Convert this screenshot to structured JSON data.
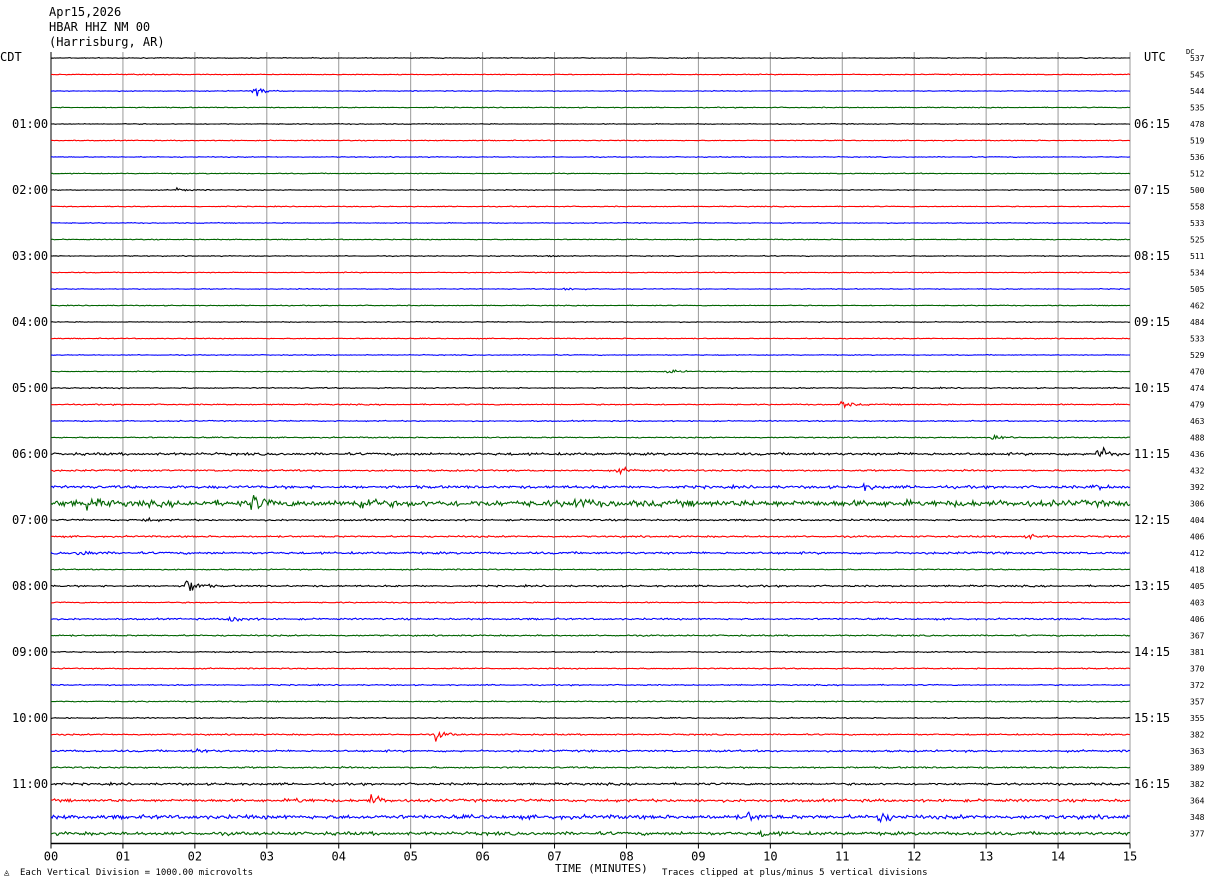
{
  "header": {
    "date": "Apr15,2026",
    "station": "HBAR HHZ NM 00",
    "location": "(Harrisburg, AR)"
  },
  "labels": {
    "left_timezone": "CDT",
    "right_timezone": "UTC",
    "dc_header": "DC",
    "x_axis_title": "TIME (MINUTES)",
    "scale_note": "Each Vertical Division = 1000.00 microvolts",
    "clip_note": "Traces clipped at plus/minus 5 vertical divisions"
  },
  "chart_data": {
    "type": "line",
    "title": "HBAR HHZ NM 00",
    "xlabel": "TIME (MINUTES)",
    "xlim": [
      0,
      15
    ],
    "x_ticks": [
      "00",
      "01",
      "02",
      "03",
      "04",
      "05",
      "06",
      "07",
      "08",
      "09",
      "10",
      "11",
      "12",
      "13",
      "14",
      "15"
    ],
    "row_interval_minutes": 15,
    "trace_colors": [
      "#000000",
      "#ff0000",
      "#0000ff",
      "#006400"
    ],
    "cdt_labels": [
      "01:00",
      "02:00",
      "03:00",
      "04:00",
      "05:00",
      "06:00",
      "07:00",
      "08:00",
      "09:00",
      "10:00",
      "11:00"
    ],
    "utc_labels": [
      "06:15",
      "07:15",
      "08:15",
      "09:15",
      "10:15",
      "11:15",
      "12:15",
      "13:15",
      "14:15",
      "15:15",
      "16:15"
    ],
    "hour_label_rows": [
      4,
      8,
      12,
      16,
      20,
      24,
      28,
      32,
      36,
      40,
      44
    ],
    "dc_offsets": [
      537,
      545,
      544,
      535,
      478,
      519,
      536,
      512,
      500,
      558,
      533,
      525,
      511,
      534,
      505,
      462,
      484,
      533,
      529,
      470,
      474,
      479,
      463,
      488,
      436,
      432,
      392,
      306,
      404,
      406,
      412,
      418,
      405,
      403,
      406,
      367,
      381,
      370,
      372,
      357,
      355,
      382,
      363,
      389,
      382,
      364,
      348,
      377
    ],
    "noise_level": [
      0.15,
      0.15,
      0.15,
      0.15,
      0.15,
      0.15,
      0.15,
      0.15,
      0.15,
      0.15,
      0.15,
      0.15,
      0.15,
      0.15,
      0.15,
      0.15,
      0.15,
      0.15,
      0.15,
      0.15,
      0.2,
      0.2,
      0.2,
      0.2,
      0.45,
      0.3,
      0.5,
      1.1,
      0.3,
      0.3,
      0.4,
      0.2,
      0.3,
      0.2,
      0.3,
      0.25,
      0.2,
      0.2,
      0.2,
      0.2,
      0.2,
      0.25,
      0.35,
      0.3,
      0.4,
      0.5,
      0.7,
      0.6
    ],
    "events": [
      {
        "row": 2,
        "minute": 2.8,
        "amplitude": 2.2
      },
      {
        "row": 8,
        "minute": 1.75,
        "amplitude": 0.8
      },
      {
        "row": 12,
        "minute": 6.9,
        "amplitude": 0.6
      },
      {
        "row": 14,
        "minute": 7.15,
        "amplitude": 0.9
      },
      {
        "row": 19,
        "minute": 8.6,
        "amplitude": 1.0
      },
      {
        "row": 21,
        "minute": 11.0,
        "amplitude": 1.3
      },
      {
        "row": 23,
        "minute": 13.1,
        "amplitude": 1.2
      },
      {
        "row": 24,
        "minute": 14.55,
        "amplitude": 3.5
      },
      {
        "row": 25,
        "minute": 7.9,
        "amplitude": 1.2
      },
      {
        "row": 26,
        "minute": 11.3,
        "amplitude": 1.0
      },
      {
        "row": 26,
        "minute": 14.5,
        "amplitude": 1.0
      },
      {
        "row": 27,
        "minute": 0.5,
        "amplitude": 2.0
      },
      {
        "row": 27,
        "minute": 2.8,
        "amplitude": 3.0
      },
      {
        "row": 27,
        "minute": 4.3,
        "amplitude": 3.5
      },
      {
        "row": 27,
        "minute": 7.3,
        "amplitude": 2.0
      },
      {
        "row": 28,
        "minute": 1.3,
        "amplitude": 0.9
      },
      {
        "row": 29,
        "minute": 13.55,
        "amplitude": 1.2
      },
      {
        "row": 30,
        "minute": 0.4,
        "amplitude": 1.5
      },
      {
        "row": 32,
        "minute": 1.9,
        "amplitude": 3.8
      },
      {
        "row": 34,
        "minute": 2.5,
        "amplitude": 1.8
      },
      {
        "row": 41,
        "minute": 5.35,
        "amplitude": 1.8
      },
      {
        "row": 42,
        "minute": 2.0,
        "amplitude": 1.2
      },
      {
        "row": 45,
        "minute": 4.45,
        "amplitude": 2.2
      },
      {
        "row": 45,
        "minute": 3.4,
        "amplitude": 1.0
      },
      {
        "row": 46,
        "minute": 9.7,
        "amplitude": 1.5
      },
      {
        "row": 46,
        "minute": 11.5,
        "amplitude": 2.5
      },
      {
        "row": 47,
        "minute": 9.9,
        "amplitude": 1.2
      }
    ]
  }
}
